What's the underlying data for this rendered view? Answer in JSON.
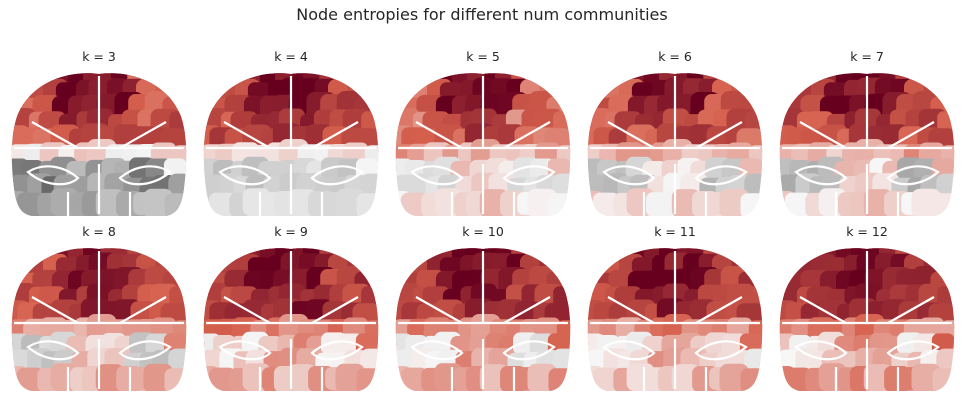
{
  "figure": {
    "title": "Node entropies for different num communities"
  },
  "colors": {
    "hot_dark": "#67001f",
    "hot_mid": "#d6604d",
    "neutral": "#f7f7f7",
    "cold_mid": "#bababa",
    "cold_dark": "#4d4d4d",
    "boundary": "#ffffff"
  },
  "chart_data": [
    {
      "type": "heatmap",
      "title": "k = 3",
      "k": 3,
      "intensity": {
        "frontal": 0.95,
        "motor": 0.72,
        "lateral": 0.55,
        "parietal": 0.05,
        "posterior": -0.55,
        "visual": -0.75
      }
    },
    {
      "type": "heatmap",
      "title": "k = 4",
      "k": 4,
      "intensity": {
        "frontal": 0.95,
        "motor": 0.78,
        "lateral": 0.6,
        "parietal": 0.05,
        "posterior": -0.25,
        "visual": -0.35
      }
    },
    {
      "type": "heatmap",
      "title": "k = 5",
      "k": 5,
      "intensity": {
        "frontal": 0.95,
        "motor": 0.7,
        "lateral": 0.45,
        "parietal": 0.25,
        "posterior": 0.12,
        "visual": -0.2
      }
    },
    {
      "type": "heatmap",
      "title": "k = 6",
      "k": 6,
      "intensity": {
        "frontal": 0.92,
        "motor": 0.72,
        "lateral": 0.55,
        "parietal": 0.22,
        "posterior": 0.08,
        "visual": -0.4
      }
    },
    {
      "type": "heatmap",
      "title": "k = 7",
      "k": 7,
      "intensity": {
        "frontal": 0.92,
        "motor": 0.72,
        "lateral": 0.6,
        "parietal": 0.25,
        "posterior": 0.1,
        "visual": -0.45
      }
    },
    {
      "type": "heatmap",
      "title": "k = 8",
      "k": 8,
      "intensity": {
        "frontal": 0.85,
        "motor": 0.8,
        "lateral": 0.62,
        "parietal": 0.35,
        "posterior": 0.2,
        "visual": -0.35
      }
    },
    {
      "type": "heatmap",
      "title": "k = 9",
      "k": 9,
      "intensity": {
        "frontal": 0.88,
        "motor": 0.85,
        "lateral": 0.68,
        "parietal": 0.4,
        "posterior": 0.28,
        "visual": 0.05
      }
    },
    {
      "type": "heatmap",
      "title": "k = 10",
      "k": 10,
      "intensity": {
        "frontal": 0.92,
        "motor": 0.88,
        "lateral": 0.7,
        "parietal": 0.4,
        "posterior": 0.3,
        "visual": -0.1
      }
    },
    {
      "type": "heatmap",
      "title": "k = 11",
      "k": 11,
      "intensity": {
        "frontal": 0.92,
        "motor": 0.88,
        "lateral": 0.68,
        "parietal": 0.35,
        "posterior": 0.22,
        "visual": 0.02
      }
    },
    {
      "type": "heatmap",
      "title": "k = 12",
      "k": 12,
      "intensity": {
        "frontal": 0.9,
        "motor": 0.88,
        "lateral": 0.7,
        "parietal": 0.38,
        "posterior": 0.3,
        "visual": 0.08
      }
    }
  ]
}
